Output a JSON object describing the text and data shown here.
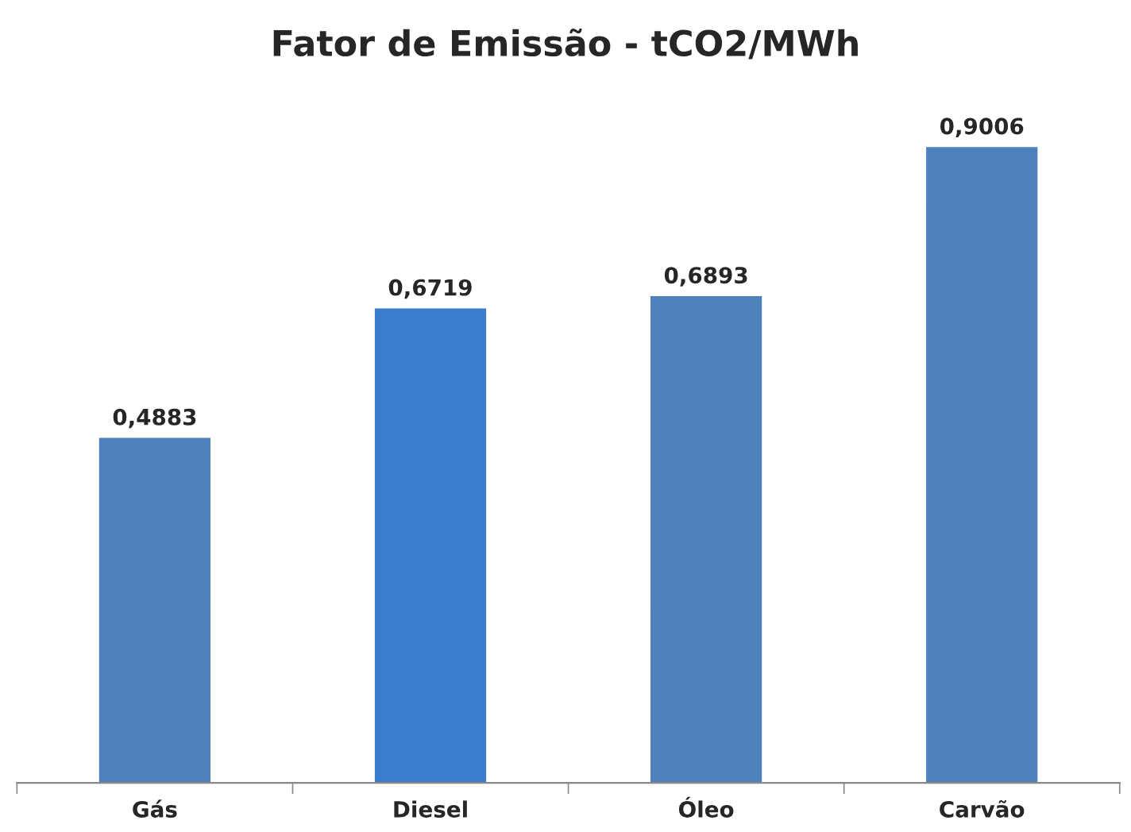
{
  "chart_data": {
    "type": "bar",
    "title": "Fator de Emissão - tCO2/MWh",
    "categories": [
      "Gás",
      "Diesel",
      "Óleo",
      "Carvão"
    ],
    "values": [
      0.4883,
      0.6719,
      0.6893,
      0.9006
    ],
    "value_labels": [
      "0,4883",
      "0,6719",
      "0,6893",
      "0,9006"
    ],
    "colors": [
      "#4f81bd",
      "#3b7ccc",
      "#4f81bd",
      "#4f81bd"
    ],
    "grid": false,
    "legend": false
  }
}
